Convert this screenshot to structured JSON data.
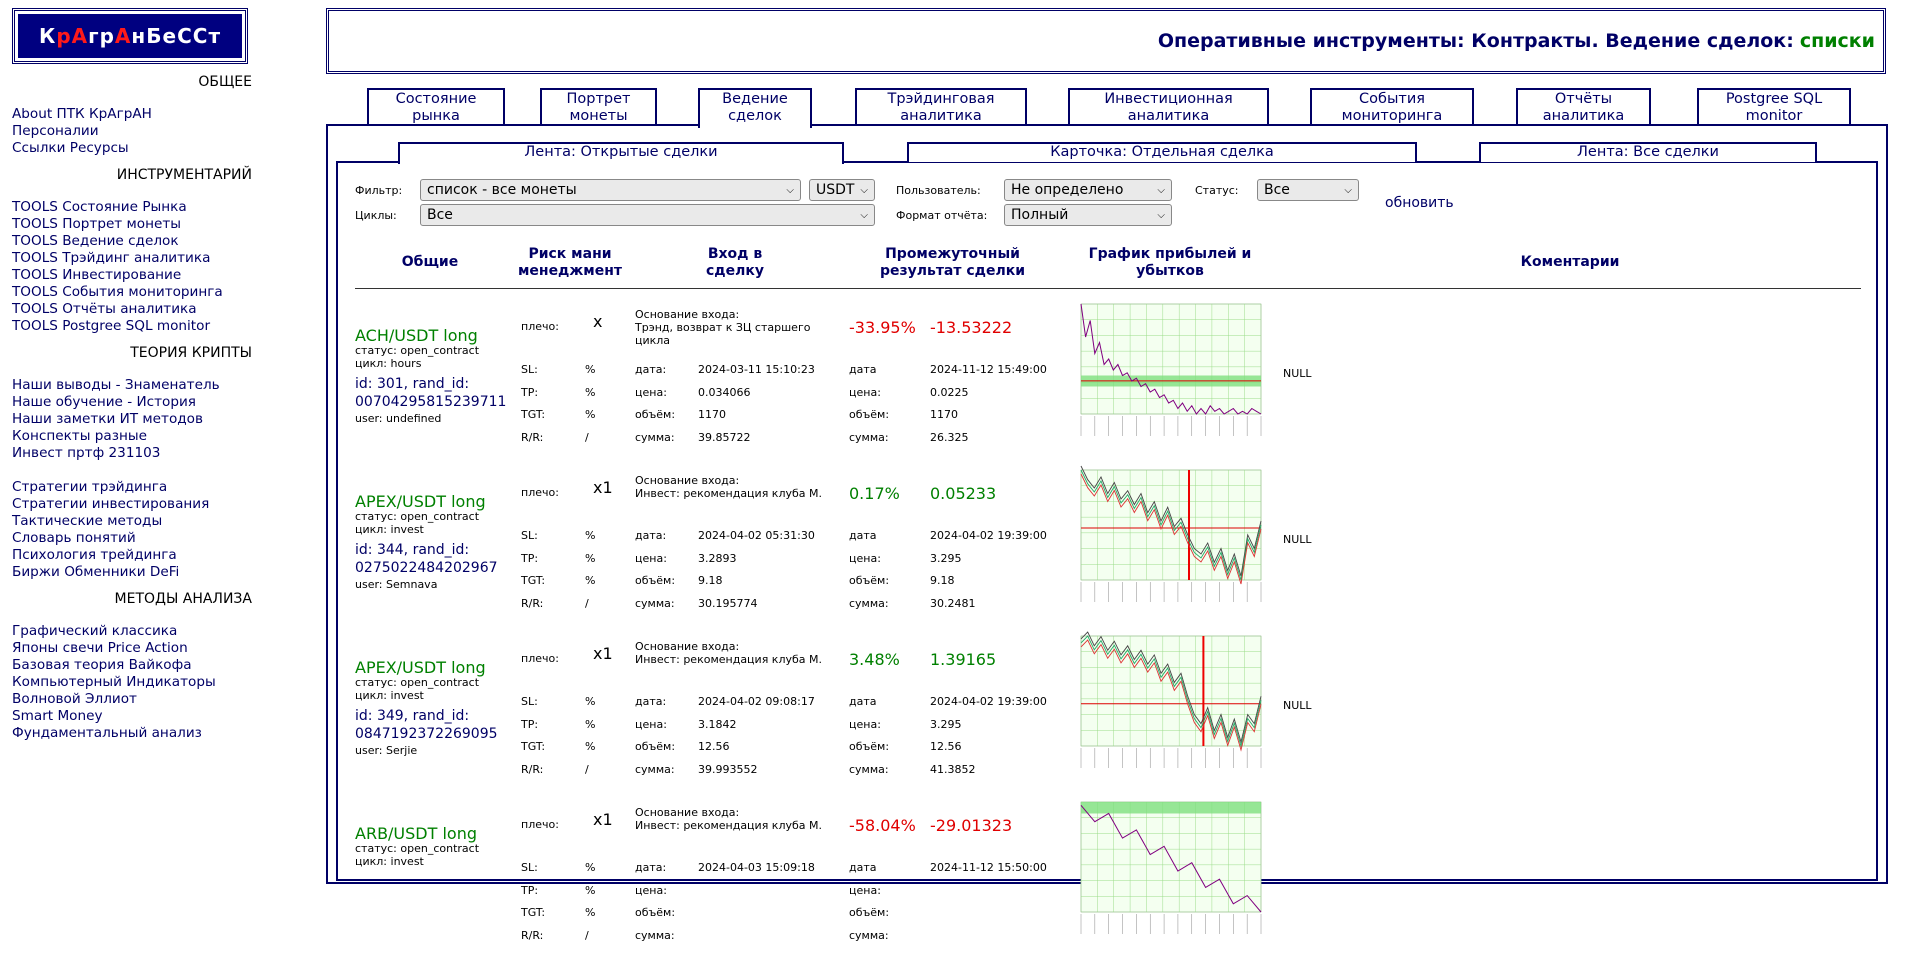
{
  "logo": {
    "parts": [
      "К",
      "р",
      "А",
      "г",
      "р",
      "А",
      "н",
      " ",
      "Б",
      "е",
      "С",
      "С",
      "т"
    ],
    "red_idx": [
      1,
      2,
      5
    ]
  },
  "sidebar": {
    "sections": [
      {
        "title": "ОБЩЕЕ",
        "links": [
          "About ПТК КрАгрАН",
          "Персоналии",
          "Ссылки Ресурсы"
        ]
      },
      {
        "title": "ИНСТРУМЕНТАРИЙ",
        "links": [
          "TOOLS Состояние Рынка",
          "TOOLS Портрет монеты",
          "TOOLS Ведение сделок",
          "TOOLS Трэйдинг аналитика",
          "TOOLS Инвестирование",
          "TOOLS События мониторинга",
          "TOOLS Отчёты аналитика",
          "TOOLS Postgree SQL monitor"
        ]
      },
      {
        "title": "ТЕОРИЯ КРИПТЫ",
        "links": [
          "Наши выводы - Знаменатель",
          "Наше обучение - История",
          "Наши заметки ИТ методов",
          "Конспекты разные",
          "Инвест пртф 231103",
          "",
          "Стратегии трэйдинга",
          "Стратегии инвестирования",
          "Тактические методы",
          "Словарь понятий",
          "Психология трейдинга",
          "Биржи Обменники DeFi"
        ]
      },
      {
        "title": "МЕТОДЫ АНАЛИЗА",
        "links": [
          "Графический классика",
          "Японы свечи Price Action",
          "Базовая теория Вайкофа",
          "Компьютерный Индикаторы",
          "Волновой Эллиот",
          "Smart Money",
          "Фундаментальный анализ"
        ]
      }
    ]
  },
  "header": {
    "title": "Оперативные инструменты: Контракты. Ведение сделок:",
    "accent": "списки"
  },
  "tabs": [
    "Состояние\nрынка",
    "Портрет\nмонеты",
    "Ведение\nсделок",
    "Трэйдинговая\nаналитика",
    "Инвестиционная\nаналитика",
    "События\nмониторинга",
    "Отчёты\nаналитика",
    "Postgree SQL\nmonitor"
  ],
  "subtabs": [
    "Лента: Открытые сделки",
    "Карточка: Отдельная сделка",
    "Лента: Все сделки"
  ],
  "filters": {
    "filter_label": "Фильтр:",
    "filter_value": "список - все монеты",
    "currency_value": "USDT",
    "user_label": "Пользователь:",
    "user_value": "Не определено",
    "status_label": "Статус:",
    "status_value": "Все",
    "cycles_label": "Циклы:",
    "cycles_value": "Все",
    "format_label": "Формат отчёта:",
    "format_value": "Полный",
    "refresh": "обновить"
  },
  "columns": [
    "Общие",
    "Риск мани\nменеджмент",
    "Вход в\nсделку",
    "Промежуточный\nрезультат сделки",
    "График прибылей и\nубытков",
    "Коментарии"
  ],
  "labels": {
    "leverage": "плечо:",
    "sl": "SL:",
    "tp": "TP:",
    "tgt": "TGT:",
    "rr": "R/R:",
    "pct": "%",
    "slash": "/",
    "date": "дата:",
    "price": "цена:",
    "volume": "объём:",
    "sum": "сумма:",
    "date2": "дата",
    "basis": "Основание входа:"
  },
  "deals": [
    {
      "pair": "ACH/USDT long",
      "status": "статус: open_contract",
      "cycle": "цикл: hours",
      "ids": "id: 301, rand_id: 00704295815239711",
      "user": "user: undefined",
      "leverage": "x",
      "basis": "Трэнд, возврат к ЗЦ старшего цикла",
      "pct": "-33.95%",
      "pl": "-13.53222",
      "positive": false,
      "in_date": "2024-03-11 15:10:23",
      "in_price": "0.034066",
      "in_vol": "1170",
      "in_sum": "39.85722",
      "cur_date": "2024-11-12 15:49:00",
      "cur_price": "0.0225",
      "cur_vol": "1170",
      "cur_sum": "26.325",
      "comment": "NULL",
      "chart": {
        "type": "line",
        "series": [
          0.062,
          0.05,
          0.056,
          0.044,
          0.048,
          0.04,
          0.042,
          0.038,
          0.04,
          0.036,
          0.037,
          0.034,
          0.035,
          0.032,
          0.033,
          0.03,
          0.031,
          0.028,
          0.029,
          0.026,
          0.027,
          0.024,
          0.026,
          0.023,
          0.025,
          0.022,
          0.024,
          0.022,
          0.025,
          0.023,
          0.024,
          0.022,
          0.023,
          0.024,
          0.022,
          0.023,
          0.022,
          0.024,
          0.023,
          0.022
        ],
        "entry": 0.034066,
        "band": [
          0.032,
          0.036
        ],
        "vline": null
      }
    },
    {
      "pair": "APEX/USDT long",
      "status": "статус: open_contract",
      "cycle": "цикл: invest",
      "ids": "id: 344, rand_id: 0275022484202967",
      "user": "user: Semnava",
      "leverage": "x1",
      "basis": "Инвест: рекомендация клуба М.",
      "pct": "0.17%",
      "pl": "0.05233",
      "positive": true,
      "in_date": "2024-04-02 05:31:30",
      "in_price": "3.2893",
      "in_vol": "9.18",
      "in_sum": "30.195774",
      "cur_date": "2024-04-02 19:39:00",
      "cur_price": "3.295",
      "cur_vol": "9.18",
      "cur_sum": "30.2481",
      "comment": "NULL",
      "chart": {
        "type": "line",
        "series": [
          3.5,
          3.45,
          3.42,
          3.46,
          3.4,
          3.44,
          3.38,
          3.41,
          3.36,
          3.4,
          3.33,
          3.37,
          3.3,
          3.35,
          3.28,
          3.31,
          3.25,
          3.2,
          3.18,
          3.22,
          3.15,
          3.2,
          3.12,
          3.18,
          3.1,
          3.25,
          3.2,
          3.3
        ],
        "entry": 3.2893,
        "band": null,
        "vline": 0.6
      }
    },
    {
      "pair": "APEX/USDT long",
      "status": "статус: open_contract",
      "cycle": "цикл: invest",
      "ids": "id: 349, rand_id: 0847192372269095",
      "user": "user: Serjie",
      "leverage": "x1",
      "basis": "Инвест: рекомендация клуба М.",
      "pct": "3.48%",
      "pl": "1.39165",
      "positive": true,
      "in_date": "2024-04-02 09:08:17",
      "in_price": "3.1842",
      "in_vol": "12.56",
      "in_sum": "39.993552",
      "cur_date": "2024-04-02 19:39:00",
      "cur_price": "3.295",
      "cur_vol": "12.56",
      "cur_sum": "41.3852",
      "comment": "NULL",
      "chart": {
        "type": "line",
        "series": [
          3.45,
          3.48,
          3.42,
          3.46,
          3.4,
          3.44,
          3.38,
          3.42,
          3.36,
          3.4,
          3.34,
          3.38,
          3.3,
          3.34,
          3.26,
          3.3,
          3.2,
          3.12,
          3.08,
          3.15,
          3.05,
          3.12,
          3.02,
          3.1,
          3.0,
          3.12,
          3.08,
          3.2
        ],
        "entry": 3.1842,
        "band": null,
        "vline": 0.68
      }
    },
    {
      "pair": "ARB/USDT long",
      "status": "статус: open_contract",
      "cycle": "цикл: invest",
      "ids": "",
      "user": "",
      "leverage": "x1",
      "basis": "Инвест: рекомендация клуба М.",
      "pct": "-58.04%",
      "pl": "-29.01323",
      "positive": false,
      "in_date": "2024-04-03 15:09:18",
      "in_price": "",
      "in_vol": "",
      "in_sum": "",
      "cur_date": "2024-11-12 15:50:00",
      "cur_price": "",
      "cur_vol": "",
      "cur_sum": "",
      "comment": "",
      "chart": {
        "type": "line",
        "series": [
          1.6,
          1.5,
          1.55,
          1.4,
          1.45,
          1.3,
          1.35,
          1.2,
          1.25,
          1.1,
          1.15,
          1.0,
          1.05,
          0.95
        ],
        "entry": null,
        "band": [
          1.55,
          1.62
        ],
        "vline": null
      }
    }
  ]
}
